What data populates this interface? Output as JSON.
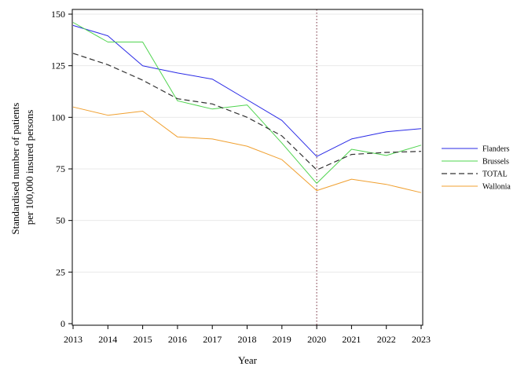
{
  "chart_data": {
    "type": "line",
    "title": "",
    "xlabel": "Year",
    "ylabel_lines": [
      "Standardised number of patients",
      "per 100,000 insured persons"
    ],
    "x": [
      2013,
      2014,
      2015,
      2016,
      2017,
      2018,
      2019,
      2020,
      2021,
      2022,
      2023
    ],
    "xlim": [
      2013,
      2023
    ],
    "ylim": [
      0,
      150
    ],
    "yticks": [
      0,
      25,
      50,
      75,
      100,
      125,
      150
    ],
    "grid": "horizontal",
    "reference_line_x": 2020,
    "legend_position": "right",
    "series": [
      {
        "name": "Flanders",
        "color": "#2a2ae6",
        "dash": "solid",
        "values": [
          144.5,
          139.5,
          125,
          121.5,
          118.5,
          108.5,
          98.5,
          81,
          89.5,
          93,
          94.5
        ]
      },
      {
        "name": "Brussels",
        "color": "#4fd44f",
        "dash": "solid",
        "values": [
          146,
          136.5,
          136.5,
          108,
          104,
          106,
          87.5,
          68,
          84.5,
          81.5,
          86.5
        ]
      },
      {
        "name": "TOTAL",
        "color": "#333333",
        "dash": "dashed",
        "values": [
          131,
          125.5,
          118,
          109,
          106.5,
          100,
          91,
          74.5,
          82,
          83,
          83.5
        ]
      },
      {
        "name": "Wallonia",
        "color": "#f0a030",
        "dash": "solid",
        "values": [
          105,
          101,
          103,
          90.5,
          89.5,
          86,
          79.5,
          64.5,
          70,
          67.5,
          63.5
        ]
      }
    ]
  }
}
